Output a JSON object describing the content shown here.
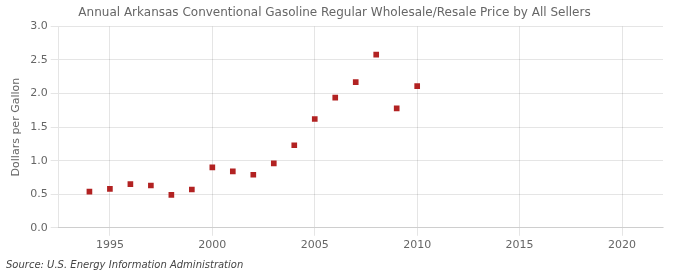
{
  "chart_data": {
    "type": "scatter",
    "title": "Annual Arkansas Conventional Gasoline Regular Wholesale/Resale Price by All Sellers",
    "ylabel": "Dollars per Gallon",
    "annotations": [
      "Source: U.S. Energy Information Administration"
    ],
    "x": [
      1994,
      1995,
      1996,
      1997,
      1998,
      1999,
      2000,
      2001,
      2002,
      2003,
      2004,
      2005,
      2006,
      2007,
      2008,
      2009,
      2010
    ],
    "values": [
      0.54,
      0.58,
      0.65,
      0.63,
      0.49,
      0.57,
      0.9,
      0.84,
      0.79,
      0.96,
      1.23,
      1.62,
      1.94,
      2.17,
      2.58,
      1.78,
      2.11
    ],
    "color": "#b22222",
    "marker": "square",
    "xlim": [
      1992.5,
      2022
    ],
    "xticks": [
      1995,
      2000,
      2005,
      2010,
      2015,
      2020
    ],
    "ylim": [
      0.0,
      3.0
    ],
    "yticks": [
      {
        "value": 0,
        "label": "0.0"
      },
      0.5,
      {
        "value": 1,
        "label": "1.0"
      },
      1.5,
      {
        "value": 2,
        "label": "2.0"
      },
      2.5,
      {
        "value": 3,
        "label": "3.0"
      }
    ],
    "grid": true
  }
}
